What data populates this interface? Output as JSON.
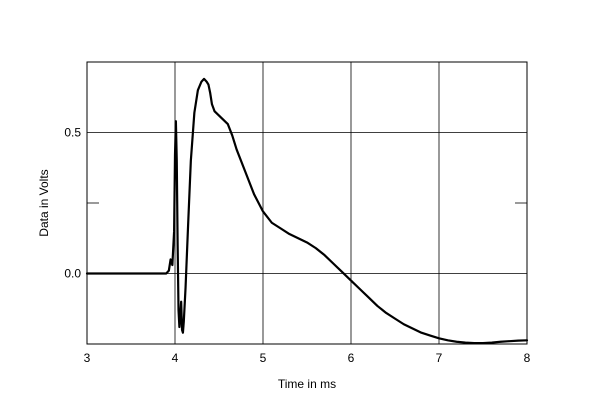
{
  "chart_data": {
    "type": "line",
    "title": "",
    "xlabel": "Time in ms",
    "ylabel": "Data in Volts",
    "xlim": [
      3,
      8
    ],
    "ylim": [
      -0.25,
      0.75
    ],
    "grid": true,
    "x_ticks": [
      3,
      4,
      5,
      6,
      7,
      8
    ],
    "x_tick_labels": [
      "3",
      "4",
      "5",
      "6",
      "7",
      "8"
    ],
    "y_ticks": [
      0.0,
      0.5
    ],
    "y_tick_labels": [
      "0.0",
      "0.5"
    ],
    "y_minor_ticks": [
      -0.25,
      0.25
    ],
    "series": [
      {
        "name": "",
        "color": "#000000",
        "x": [
          3.0,
          3.5,
          3.9,
          3.93,
          3.95,
          3.97,
          3.99,
          4.0,
          4.01,
          4.02,
          4.03,
          4.04,
          4.05,
          4.06,
          4.07,
          4.08,
          4.09,
          4.1,
          4.12,
          4.15,
          4.18,
          4.22,
          4.26,
          4.3,
          4.33,
          4.36,
          4.38,
          4.4,
          4.42,
          4.45,
          4.5,
          4.55,
          4.6,
          4.65,
          4.7,
          4.8,
          4.9,
          5.0,
          5.1,
          5.2,
          5.3,
          5.4,
          5.5,
          5.6,
          5.7,
          5.8,
          5.9,
          6.0,
          6.1,
          6.2,
          6.3,
          6.4,
          6.5,
          6.6,
          6.7,
          6.8,
          6.9,
          7.0,
          7.1,
          7.2,
          7.3,
          7.4,
          7.5,
          7.6,
          7.7,
          7.8,
          7.9,
          8.0
        ],
        "y": [
          0.0,
          0.0,
          0.0,
          0.01,
          0.05,
          0.03,
          0.15,
          0.42,
          0.54,
          0.4,
          0.1,
          -0.13,
          -0.19,
          -0.15,
          -0.1,
          -0.2,
          -0.21,
          -0.17,
          -0.05,
          0.18,
          0.4,
          0.57,
          0.65,
          0.68,
          0.69,
          0.68,
          0.67,
          0.64,
          0.6,
          0.575,
          0.56,
          0.545,
          0.53,
          0.49,
          0.44,
          0.36,
          0.28,
          0.22,
          0.18,
          0.16,
          0.14,
          0.125,
          0.11,
          0.09,
          0.065,
          0.035,
          0.005,
          -0.025,
          -0.055,
          -0.085,
          -0.115,
          -0.14,
          -0.16,
          -0.18,
          -0.195,
          -0.21,
          -0.22,
          -0.23,
          -0.237,
          -0.242,
          -0.245,
          -0.247,
          -0.247,
          -0.245,
          -0.242,
          -0.24,
          -0.238,
          -0.237
        ]
      }
    ]
  }
}
